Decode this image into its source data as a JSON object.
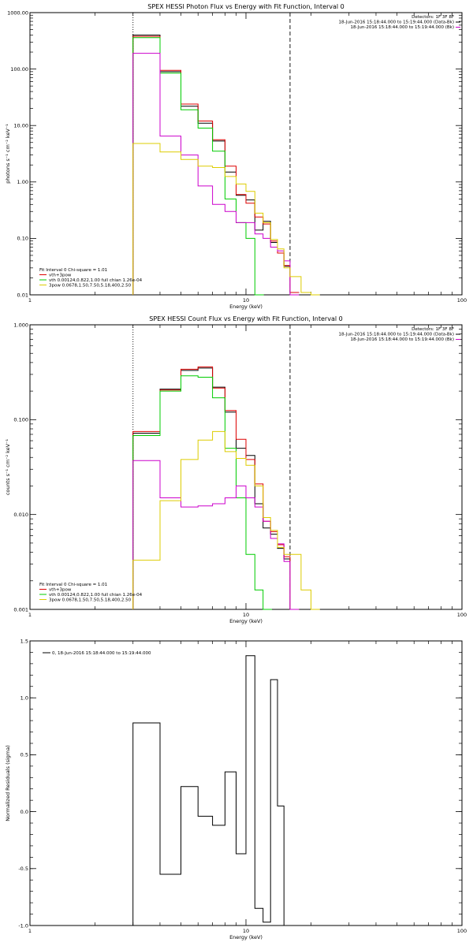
{
  "chart_data": [
    {
      "id": "photon",
      "type": "line",
      "title": "SPEX HESSI Photon Flux vs Energy with Fit Function, Interval 0",
      "xlabel": "Energy (keV)",
      "ylabel": "photons s⁻¹ cm⁻² keV⁻¹",
      "xscale": "log",
      "yscale": "log",
      "xlim": [
        1,
        100
      ],
      "ylim": [
        0.01,
        1000
      ],
      "xticks": [
        {
          "v": 1,
          "label": "1"
        },
        {
          "v": 10,
          "label": "10"
        },
        {
          "v": 100,
          "label": "100"
        }
      ],
      "yticks": [
        {
          "v": 0.01,
          "label": "0.01"
        },
        {
          "v": 0.1,
          "label": "0.10"
        },
        {
          "v": 1,
          "label": "1.00"
        },
        {
          "v": 10,
          "label": "10.00"
        },
        {
          "v": 100,
          "label": "100.00"
        },
        {
          "v": 1000,
          "label": "1000.00"
        }
      ],
      "vlines": [
        {
          "x": 3,
          "style": "dotted"
        },
        {
          "x": 16,
          "style": "dashed"
        }
      ],
      "info": [
        "Detectors: 1F 3F 8F",
        "18-Jun-2016 15:18:44.000 to 15:19:44.000 (Data-Bk)",
        "18-Jun-2016 15:18:44.000 to 15:19:44.000 (Bk)"
      ],
      "legend": {
        "header": "Fit Interval 0   Chi-square = 1.01",
        "entries": [
          "vth+3pow",
          "vth 0.00124,0.822,1.00  full chian 1.26e-04",
          "3pow 0.0678,1.50,7.50,5.18,400,2.50"
        ]
      },
      "series": [
        {
          "key": "data",
          "color": "#000000",
          "points": [
            [
              3,
              400
            ],
            [
              4,
              90
            ],
            [
              5,
              22
            ],
            [
              6,
              11
            ],
            [
              7,
              5.3
            ],
            [
              8,
              1.5
            ],
            [
              9,
              0.58
            ],
            [
              10,
              0.48
            ],
            [
              11,
              0.14
            ],
            [
              12,
              0.2
            ],
            [
              13,
              0.085
            ],
            [
              14,
              0.055
            ],
            [
              15,
              0.032
            ],
            [
              16,
              0.011
            ]
          ]
        },
        {
          "key": "fit",
          "color": "#dd0000",
          "points": [
            [
              3,
              380
            ],
            [
              4,
              95
            ],
            [
              5,
              24
            ],
            [
              6,
              12
            ],
            [
              7,
              5.6
            ],
            [
              8,
              1.9
            ],
            [
              9,
              0.6
            ],
            [
              10,
              0.42
            ],
            [
              11,
              0.24
            ],
            [
              12,
              0.18
            ],
            [
              13,
              0.09
            ],
            [
              14,
              0.055
            ],
            [
              15,
              0.033
            ],
            [
              16,
              0.011
            ]
          ]
        },
        {
          "key": "vth",
          "color": "#00cc00",
          "points": [
            [
              3,
              360
            ],
            [
              4,
              85
            ],
            [
              5,
              19
            ],
            [
              6,
              9
            ],
            [
              7,
              3.5
            ],
            [
              8,
              0.5
            ],
            [
              9,
              0.19
            ],
            [
              10,
              0.1
            ],
            [
              11,
              0.01
            ]
          ]
        },
        {
          "key": "background",
          "color": "#cc00cc",
          "points": [
            [
              3,
              190
            ],
            [
              4,
              6.5
            ],
            [
              5,
              3
            ],
            [
              6,
              0.85
            ],
            [
              7,
              0.4
            ],
            [
              8,
              0.3
            ],
            [
              9,
              0.19
            ],
            [
              10,
              0.19
            ],
            [
              11,
              0.12
            ],
            [
              12,
              0.1
            ],
            [
              13,
              0.07
            ],
            [
              14,
              0.06
            ],
            [
              15,
              0.04
            ],
            [
              16,
              0.01
            ]
          ]
        },
        {
          "key": "3pow",
          "color": "#ddcc00",
          "points": [
            [
              3,
              4.8
            ],
            [
              4,
              3.4
            ],
            [
              5,
              2.5
            ],
            [
              6,
              1.9
            ],
            [
              7,
              1.8
            ],
            [
              8,
              1.25
            ],
            [
              9,
              0.92
            ],
            [
              10,
              0.68
            ],
            [
              11,
              0.28
            ],
            [
              12,
              0.19
            ],
            [
              13,
              0.096
            ],
            [
              14,
              0.065
            ],
            [
              15,
              0.03
            ],
            [
              16,
              0.021
            ],
            [
              18,
              0.011
            ],
            [
              20,
              0.01
            ]
          ]
        }
      ]
    },
    {
      "id": "count",
      "type": "line",
      "title": "SPEX HESSI Count Flux vs Energy with Fit Function, Interval 0",
      "xlabel": "Energy (keV)",
      "ylabel": "counts s⁻¹ cm⁻² keV⁻¹",
      "xscale": "log",
      "yscale": "log",
      "xlim": [
        1,
        100
      ],
      "ylim": [
        0.001,
        1
      ],
      "xticks": [
        {
          "v": 1,
          "label": "1"
        },
        {
          "v": 10,
          "label": "10"
        },
        {
          "v": 100,
          "label": "100"
        }
      ],
      "yticks": [
        {
          "v": 0.001,
          "label": "0.001"
        },
        {
          "v": 0.01,
          "label": "0.010"
        },
        {
          "v": 0.1,
          "label": "0.100"
        },
        {
          "v": 1,
          "label": "1.000"
        }
      ],
      "vlines": [
        {
          "x": 3,
          "style": "dotted"
        },
        {
          "x": 16,
          "style": "dashed"
        }
      ],
      "info": [
        "Detectors: 1F 3F 8F",
        "18-Jun-2016 15:18:44.000 to 15:19:44.000 (Data-Bk)",
        "18-Jun-2016 15:18:44.000 to 15:19:44.000 (Bk)"
      ],
      "legend": {
        "header": "Fit Interval 0   Chi-square = 1.01",
        "entries": [
          "vth+3pow",
          "vth 0.00124,0.822,1.00  full chian 1.26e-04",
          "3pow 0.0678,1.50,7.50,5.18,400,2.50"
        ]
      },
      "series": [
        {
          "key": "data",
          "color": "#000000",
          "points": [
            [
              3,
              0.072
            ],
            [
              4,
              0.21
            ],
            [
              5,
              0.33
            ],
            [
              6,
              0.35
            ],
            [
              7,
              0.22
            ],
            [
              8,
              0.12
            ],
            [
              9,
              0.05
            ],
            [
              10,
              0.042
            ],
            [
              11,
              0.013
            ],
            [
              12,
              0.0072
            ],
            [
              13,
              0.0062
            ],
            [
              14,
              0.0044
            ],
            [
              15,
              0.0034
            ],
            [
              16,
              0.001
            ]
          ]
        },
        {
          "key": "fit",
          "color": "#dd0000",
          "points": [
            [
              3,
              0.075
            ],
            [
              4,
              0.205
            ],
            [
              5,
              0.34
            ],
            [
              6,
              0.36
            ],
            [
              7,
              0.215
            ],
            [
              8,
              0.125
            ],
            [
              9,
              0.062
            ],
            [
              10,
              0.038
            ],
            [
              11,
              0.021
            ],
            [
              12,
              0.0085
            ],
            [
              13,
              0.0066
            ],
            [
              14,
              0.0048
            ],
            [
              15,
              0.0036
            ],
            [
              16,
              0.001
            ]
          ]
        },
        {
          "key": "vth",
          "color": "#00cc00",
          "points": [
            [
              3,
              0.068
            ],
            [
              4,
              0.2
            ],
            [
              5,
              0.29
            ],
            [
              6,
              0.28
            ],
            [
              7,
              0.17
            ],
            [
              8,
              0.05
            ],
            [
              9,
              0.015
            ],
            [
              10,
              0.0038
            ],
            [
              11,
              0.0016
            ],
            [
              12,
              0.001
            ]
          ]
        },
        {
          "key": "background",
          "color": "#cc00cc",
          "points": [
            [
              3,
              0.037
            ],
            [
              4,
              0.015
            ],
            [
              5,
              0.012
            ],
            [
              6,
              0.0123
            ],
            [
              7,
              0.013
            ],
            [
              8,
              0.015
            ],
            [
              9,
              0.02
            ],
            [
              10,
              0.015
            ],
            [
              11,
              0.012
            ],
            [
              12,
              0.0085
            ],
            [
              13,
              0.0056
            ],
            [
              14,
              0.0049
            ],
            [
              15,
              0.0032
            ],
            [
              16,
              0.001
            ]
          ]
        },
        {
          "key": "3pow",
          "color": "#ddcc00",
          "points": [
            [
              3,
              0.0033
            ],
            [
              4,
              0.014
            ],
            [
              5,
              0.038
            ],
            [
              6,
              0.061
            ],
            [
              7,
              0.075
            ],
            [
              8,
              0.046
            ],
            [
              9,
              0.039
            ],
            [
              10,
              0.033
            ],
            [
              11,
              0.02
            ],
            [
              12,
              0.0093
            ],
            [
              13,
              0.0068
            ],
            [
              14,
              0.0045
            ],
            [
              15,
              0.0038
            ],
            [
              16,
              0.0038
            ],
            [
              18,
              0.0016
            ],
            [
              20,
              0.001
            ]
          ]
        }
      ]
    },
    {
      "id": "residuals",
      "type": "line",
      "title": "",
      "xlabel": "Energy (keV)",
      "ylabel": "Normalized Residuals (sigma)",
      "xscale": "log",
      "yscale": "linear",
      "xlim": [
        1,
        100
      ],
      "ylim": [
        -1,
        1.5
      ],
      "xticks": [
        {
          "v": 1,
          "label": "1"
        },
        {
          "v": 10,
          "label": "10"
        },
        {
          "v": 100,
          "label": "100"
        }
      ],
      "yticks": [
        {
          "v": -1,
          "label": "-1.0"
        },
        {
          "v": -0.5,
          "label": "-0.5"
        },
        {
          "v": 0,
          "label": "0.0"
        },
        {
          "v": 0.5,
          "label": "0.5"
        },
        {
          "v": 1,
          "label": "1.0"
        },
        {
          "v": 1.5,
          "label": "1.5"
        }
      ],
      "vlines": [],
      "info": [],
      "legend": {
        "header": "",
        "entries": [
          "0, 18-Jun-2016 15:18:44.000 to 15:19:44.000"
        ]
      },
      "series": [
        {
          "key": "residual",
          "color": "#000000",
          "points": [
            [
              3,
              -1
            ],
            [
              3,
              0.78
            ],
            [
              4,
              0.78
            ],
            [
              4,
              -0.55
            ],
            [
              5,
              -0.55
            ],
            [
              5,
              0.22
            ],
            [
              6,
              0.22
            ],
            [
              6,
              -0.04
            ],
            [
              7,
              -0.04
            ],
            [
              7,
              -0.12
            ],
            [
              8,
              -0.12
            ],
            [
              8,
              0.35
            ],
            [
              9,
              0.35
            ],
            [
              9,
              -0.37
            ],
            [
              10,
              -0.37
            ],
            [
              10,
              1.37
            ],
            [
              11,
              1.37
            ],
            [
              11,
              -0.85
            ],
            [
              12,
              -0.85
            ],
            [
              12,
              -0.97
            ],
            [
              13,
              -0.97
            ],
            [
              13,
              1.16
            ],
            [
              14,
              1.16
            ],
            [
              14,
              0.05
            ],
            [
              15,
              0.05
            ],
            [
              15,
              -1
            ]
          ]
        }
      ]
    }
  ]
}
